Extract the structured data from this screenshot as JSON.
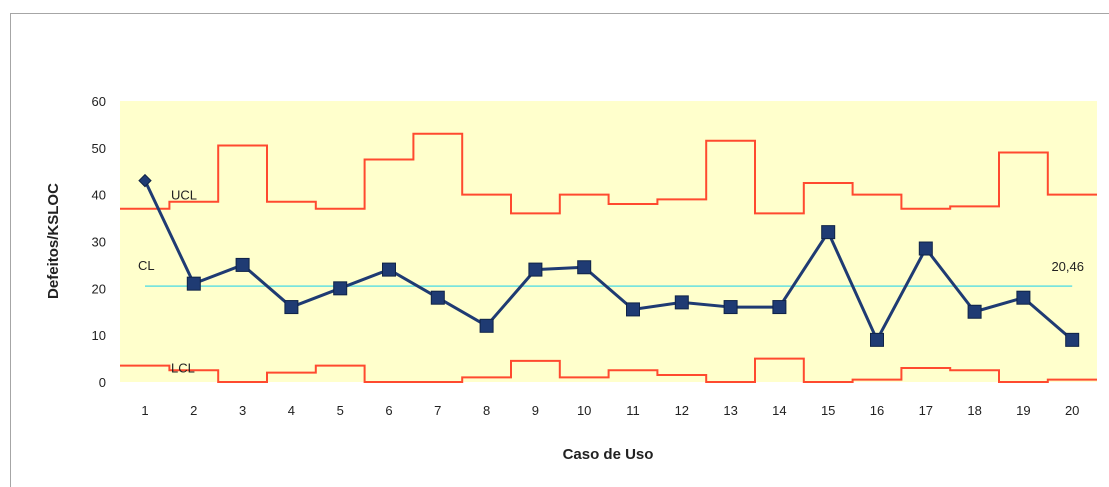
{
  "chart_data": {
    "type": "line",
    "xlabel": "Caso de Uso",
    "ylabel": "Defeitos/KSLOC",
    "categories": [
      "1",
      "2",
      "3",
      "4",
      "5",
      "6",
      "7",
      "8",
      "9",
      "10",
      "11",
      "12",
      "13",
      "14",
      "15",
      "16",
      "17",
      "18",
      "19",
      "20"
    ],
    "ylim": [
      0,
      60
    ],
    "yticks": [
      0,
      10,
      20,
      30,
      40,
      50,
      60
    ],
    "grid": false,
    "plot_background": "#ffffcc",
    "series": [
      {
        "role": "measured",
        "color": "#1f3b73",
        "values": [
          43,
          21,
          25,
          16,
          20,
          24,
          18,
          12,
          24,
          24.5,
          15.5,
          17,
          16,
          16,
          32,
          9,
          28.5,
          15,
          18,
          9
        ]
      },
      {
        "role": "ucl",
        "label": "UCL",
        "color": "#ff4a2f",
        "values": [
          37,
          38.5,
          50.5,
          38.5,
          37,
          47.5,
          53,
          40,
          36,
          40,
          38,
          39,
          51.5,
          36,
          42.5,
          40,
          37,
          37.5,
          49,
          40
        ]
      },
      {
        "role": "lcl",
        "label": "LCL",
        "color": "#ff4a2f",
        "values": [
          3.5,
          2.5,
          0,
          2,
          3.5,
          0,
          0,
          1,
          4.5,
          1,
          2.5,
          1.5,
          0,
          5,
          0,
          0.5,
          3,
          2.5,
          0,
          0.5
        ]
      }
    ],
    "center_line": {
      "label": "CL",
      "value": 20.46,
      "value_label": "20,46",
      "color": "#66e0e0"
    }
  }
}
